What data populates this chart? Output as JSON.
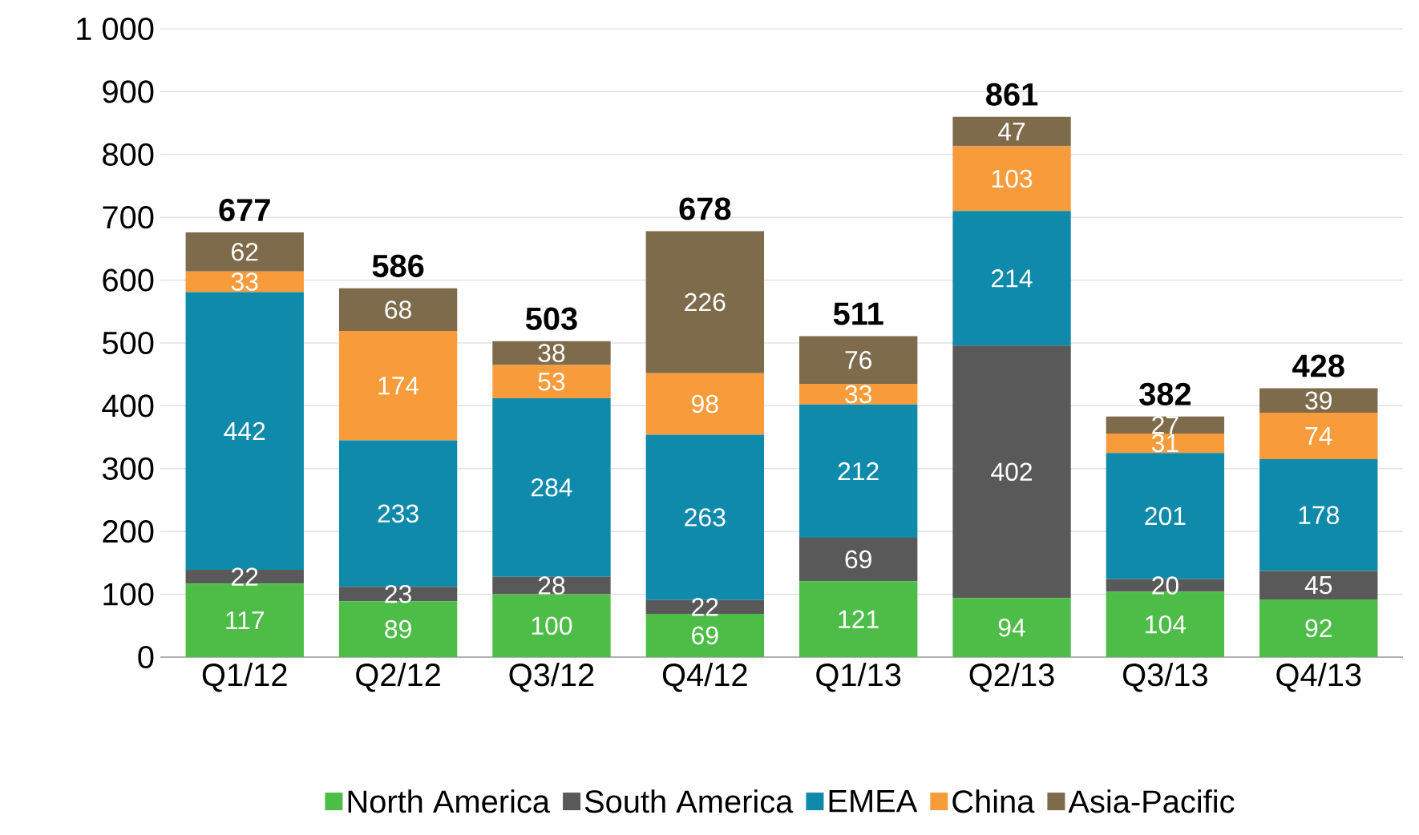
{
  "chart_data": {
    "type": "bar",
    "stacked": true,
    "data_labels": true,
    "grid": "y",
    "legend": "bottom",
    "categories": [
      "Q1/12",
      "Q2/12",
      "Q3/12",
      "Q4/12",
      "Q1/13",
      "Q2/13",
      "Q3/13",
      "Q4/13"
    ],
    "ylim": [
      0,
      1000
    ],
    "yticks": [
      0,
      100,
      200,
      300,
      400,
      500,
      600,
      700,
      800,
      900,
      {
        "value": 1000,
        "label": "1 000"
      }
    ],
    "series": [
      {
        "name": "North America",
        "color": "#4dbd48",
        "values": [
          117,
          89,
          100,
          69,
          121,
          94,
          104,
          92
        ]
      },
      {
        "name": "South America",
        "color": "#595959",
        "values": [
          22,
          23,
          28,
          22,
          69,
          402,
          20,
          45
        ]
      },
      {
        "name": "EMEA",
        "color": "#0f8aaa",
        "values": [
          442,
          233,
          284,
          263,
          212,
          214,
          201,
          178
        ]
      },
      {
        "name": "China",
        "color": "#f79b3b",
        "values": [
          33,
          174,
          53,
          98,
          33,
          103,
          31,
          74
        ]
      },
      {
        "name": "Asia-Pacific",
        "color": "#7d6b4b",
        "values": [
          62,
          68,
          38,
          226,
          76,
          47,
          27,
          39
        ]
      }
    ],
    "totals": [
      "677",
      "586",
      "503",
      "678",
      "511",
      "861",
      "382",
      "428"
    ]
  }
}
